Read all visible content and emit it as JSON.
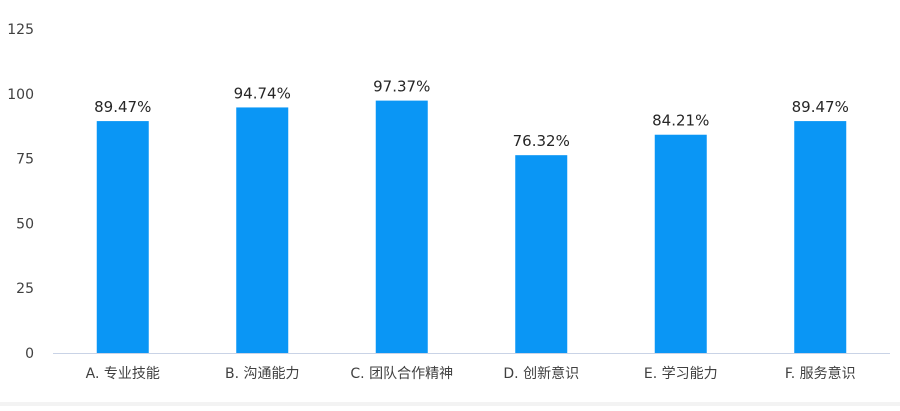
{
  "colors": {
    "bar": "#0a96f5",
    "axis": "#c9d3e6"
  },
  "chart_data": {
    "type": "bar",
    "categories": [
      "A. 专业技能",
      "B. 沟通能力",
      "C. 团队合作精神",
      "D. 创新意识",
      "E. 学习能力",
      "F. 服务意识"
    ],
    "values": [
      89.47,
      94.74,
      97.37,
      76.32,
      84.21,
      89.47
    ],
    "data_labels": [
      "89.47%",
      "94.74%",
      "97.37%",
      "76.32%",
      "84.21%",
      "89.47%"
    ],
    "y_ticks": [
      "0",
      "25",
      "50",
      "75",
      "100",
      "125"
    ],
    "ylim": [
      0,
      125
    ],
    "grid": false,
    "legend": "none"
  }
}
